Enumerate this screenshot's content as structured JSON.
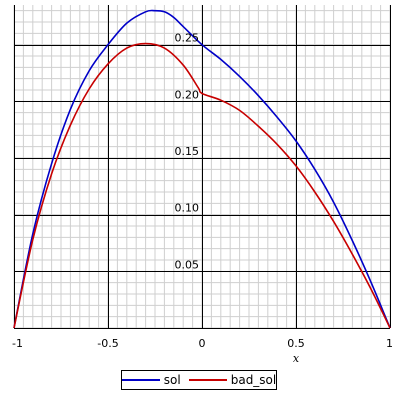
{
  "chart_data": {
    "type": "line",
    "title": "",
    "xlabel": "x",
    "ylabel": "",
    "xlim": [
      -1,
      1
    ],
    "ylim": [
      0,
      0.285
    ],
    "x_ticks": [
      -1,
      -0.5,
      0,
      0.5,
      1
    ],
    "x_tick_labels": [
      "-1",
      "-0.5",
      "0",
      "0.5",
      "1"
    ],
    "y_ticks": [
      0.05,
      0.1,
      0.15,
      0.2,
      0.25
    ],
    "y_tick_labels": [
      "0.05",
      "0.10",
      "0.15",
      "0.20",
      "0.25"
    ],
    "grid": true,
    "legend_position": "bottom-center",
    "series": [
      {
        "name": "sol",
        "color": "#0000c8",
        "x": [
          -1,
          -0.9,
          -0.8,
          -0.7,
          -0.6,
          -0.5,
          -0.4,
          -0.3,
          -0.25,
          -0.2,
          -0.15,
          -0.1,
          0,
          0.1,
          0.2,
          0.3,
          0.4,
          0.5,
          0.6,
          0.7,
          0.8,
          0.9,
          1
        ],
        "y": [
          0,
          0.083,
          0.145,
          0.193,
          0.227,
          0.25,
          0.269,
          0.279,
          0.28,
          0.279,
          0.274,
          0.266,
          0.25,
          0.237,
          0.222,
          0.205,
          0.186,
          0.165,
          0.14,
          0.111,
          0.077,
          0.04,
          0
        ]
      },
      {
        "name": "bad_sol",
        "color": "#c80000",
        "x": [
          -1,
          -0.9,
          -0.8,
          -0.7,
          -0.6,
          -0.5,
          -0.4,
          -0.3,
          -0.2,
          -0.1,
          -0.02,
          0,
          0.1,
          0.2,
          0.3,
          0.4,
          0.5,
          0.6,
          0.7,
          0.8,
          0.9,
          1
        ],
        "y": [
          0,
          0.078,
          0.136,
          0.179,
          0.211,
          0.233,
          0.247,
          0.251,
          0.247,
          0.232,
          0.212,
          0.207,
          0.201,
          0.192,
          0.178,
          0.162,
          0.143,
          0.12,
          0.094,
          0.065,
          0.034,
          0
        ]
      }
    ]
  }
}
